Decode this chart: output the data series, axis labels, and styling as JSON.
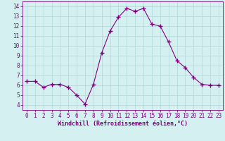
{
  "x": [
    0,
    1,
    2,
    3,
    4,
    5,
    6,
    7,
    8,
    9,
    10,
    11,
    12,
    13,
    14,
    15,
    16,
    17,
    18,
    19,
    20,
    21,
    22,
    23
  ],
  "y": [
    6.4,
    6.4,
    5.8,
    6.1,
    6.1,
    5.8,
    5.0,
    4.1,
    6.1,
    9.3,
    11.5,
    12.9,
    13.8,
    13.5,
    13.8,
    12.2,
    12.0,
    10.4,
    8.5,
    7.8,
    6.8,
    6.1,
    6.0,
    6.0
  ],
  "line_color": "#800080",
  "marker": "+",
  "marker_size": 4,
  "bg_color": "#d4f0f0",
  "grid_color": "#b0d8d8",
  "xlabel": "Windchill (Refroidissement éolien,°C)",
  "xlabel_color": "#800080",
  "tick_color": "#800080",
  "axis_color": "#800080",
  "ylim": [
    3.5,
    14.5
  ],
  "xlim": [
    -0.5,
    23.5
  ],
  "yticks": [
    4,
    5,
    6,
    7,
    8,
    9,
    10,
    11,
    12,
    13,
    14
  ],
  "xticks": [
    0,
    1,
    2,
    3,
    4,
    5,
    6,
    7,
    8,
    9,
    10,
    11,
    12,
    13,
    14,
    15,
    16,
    17,
    18,
    19,
    20,
    21,
    22,
    23
  ],
  "tick_fontsize": 5.5,
  "xlabel_fontsize": 6.0
}
